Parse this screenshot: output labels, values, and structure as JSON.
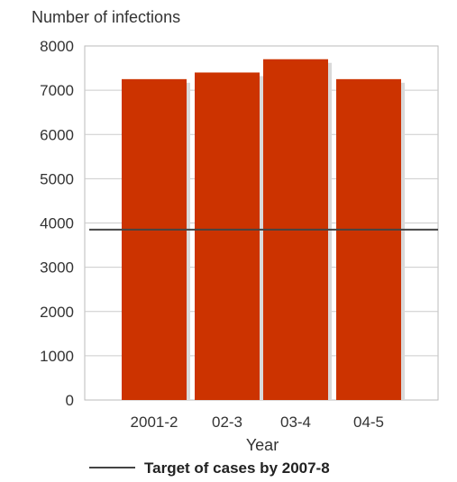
{
  "chart_data": {
    "type": "bar",
    "categories": [
      "2001-2",
      "02-3",
      "03-4",
      "04-5"
    ],
    "values": [
      7250,
      7400,
      7700,
      7250
    ],
    "ylabel": "Number of infections",
    "xlabel": "Year",
    "ylim": [
      0,
      8000
    ],
    "yticks": [
      "0",
      "1000",
      "2000",
      "3000",
      "4000",
      "5000",
      "6000",
      "7000",
      "8000"
    ],
    "target": {
      "value": 3850,
      "label": "Target of cases by 2007-8"
    },
    "grid": true,
    "legend_position": "bottom",
    "bar_color": "#cc3300",
    "target_color": "#444444"
  }
}
